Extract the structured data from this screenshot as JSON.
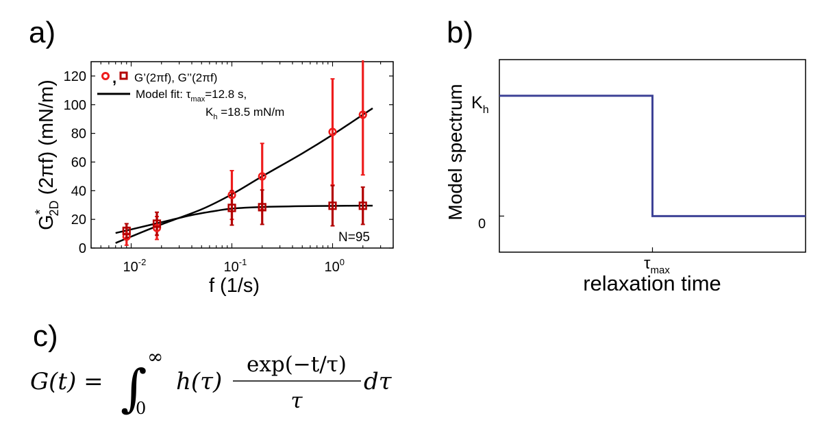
{
  "panels": {
    "a": {
      "label": "a)"
    },
    "b": {
      "label": "b)"
    },
    "c": {
      "label": "c)"
    }
  },
  "chart_data": [
    {
      "type": "scatter",
      "panel": "a",
      "xscale": "log",
      "xlim": [
        0.004,
        4
      ],
      "ylim": [
        0,
        130
      ],
      "xlabel": "f (1/s)",
      "ylabel": {
        "main": "G",
        "sup": "*",
        "sub": "2D",
        "rest": " (2πf) (mN/m)"
      },
      "xticks": [
        {
          "value": 0.01,
          "base": "10",
          "exp": "-2"
        },
        {
          "value": 0.1,
          "base": "10",
          "exp": "-1"
        },
        {
          "value": 1,
          "base": "10",
          "exp": "0"
        }
      ],
      "yticks": [
        "0",
        "20",
        "40",
        "60",
        "80",
        "100",
        "120"
      ],
      "annotation": "N=95",
      "legend": {
        "markers_label": "G’(2πf), G’’(2πf)",
        "separator": ",",
        "fit_label": "Model fit: τ",
        "fit_sub": "max",
        "fit_value": "=12.8 s,",
        "k_label": "K",
        "k_sub": "h",
        "k_value": " =18.5 mN/m"
      },
      "series": [
        {
          "marker": "circle",
          "color": "#ee1c1c",
          "points": [
            {
              "x": 0.009,
              "y": 8,
              "err": 6
            },
            {
              "x": 0.018,
              "y": 14,
              "err": 8
            },
            {
              "x": 0.1,
              "y": 37,
              "err": 17
            },
            {
              "x": 0.2,
              "y": 50,
              "err": 23
            },
            {
              "x": 1.0,
              "y": 81,
              "err": 37
            },
            {
              "x": 2.0,
              "y": 93,
              "err": 42
            }
          ]
        },
        {
          "marker": "square",
          "color": "#b30000",
          "points": [
            {
              "x": 0.009,
              "y": 12,
              "err": 5
            },
            {
              "x": 0.018,
              "y": 17,
              "err": 8
            },
            {
              "x": 0.1,
              "y": 28,
              "err": 12
            },
            {
              "x": 0.2,
              "y": 28.5,
              "err": 12
            },
            {
              "x": 1.0,
              "y": 29.5,
              "err": 14
            },
            {
              "x": 2.0,
              "y": 29.5,
              "err": 13
            }
          ]
        }
      ],
      "fits": [
        {
          "color": "#000000",
          "points": [
            [
              0.007,
              3.5
            ],
            [
              0.01,
              8
            ],
            [
              0.02,
              16.5
            ],
            [
              0.05,
              27
            ],
            [
              0.1,
              37.5
            ],
            [
              0.2,
              50
            ],
            [
              0.5,
              66
            ],
            [
              1.0,
              79
            ],
            [
              2.0,
              93
            ],
            [
              2.5,
              97.5
            ]
          ]
        },
        {
          "color": "#000000",
          "points": [
            [
              0.007,
              10.5
            ],
            [
              0.01,
              13
            ],
            [
              0.02,
              18
            ],
            [
              0.04,
              23
            ],
            [
              0.07,
              26
            ],
            [
              0.1,
              27.5
            ],
            [
              0.2,
              28.6
            ],
            [
              0.5,
              29.2
            ],
            [
              1.0,
              29.4
            ],
            [
              2.5,
              29.6
            ]
          ]
        }
      ]
    },
    {
      "type": "line",
      "panel": "b",
      "xlabel": "relaxation time",
      "ylabel": "Model spectrum",
      "xtick": {
        "label": "τ",
        "sub": "max"
      },
      "yticks": [
        {
          "value": 1,
          "label": "K",
          "sub": "h"
        },
        {
          "value": 0,
          "label": "0"
        }
      ],
      "xlim": [
        0,
        2
      ],
      "ylim": [
        -0.3,
        1.3
      ],
      "line_color": "#3d4296",
      "points": [
        [
          0,
          1
        ],
        [
          1,
          1
        ],
        [
          1,
          0
        ],
        [
          2,
          0
        ]
      ]
    }
  ],
  "equation": {
    "lhs": "G(t) = ",
    "integral": "∫",
    "upper": "∞",
    "lower": "0",
    "kernel": "h(τ)",
    "numerator": "exp(−t/τ)",
    "denominator": "τ",
    "differential": "dτ"
  }
}
